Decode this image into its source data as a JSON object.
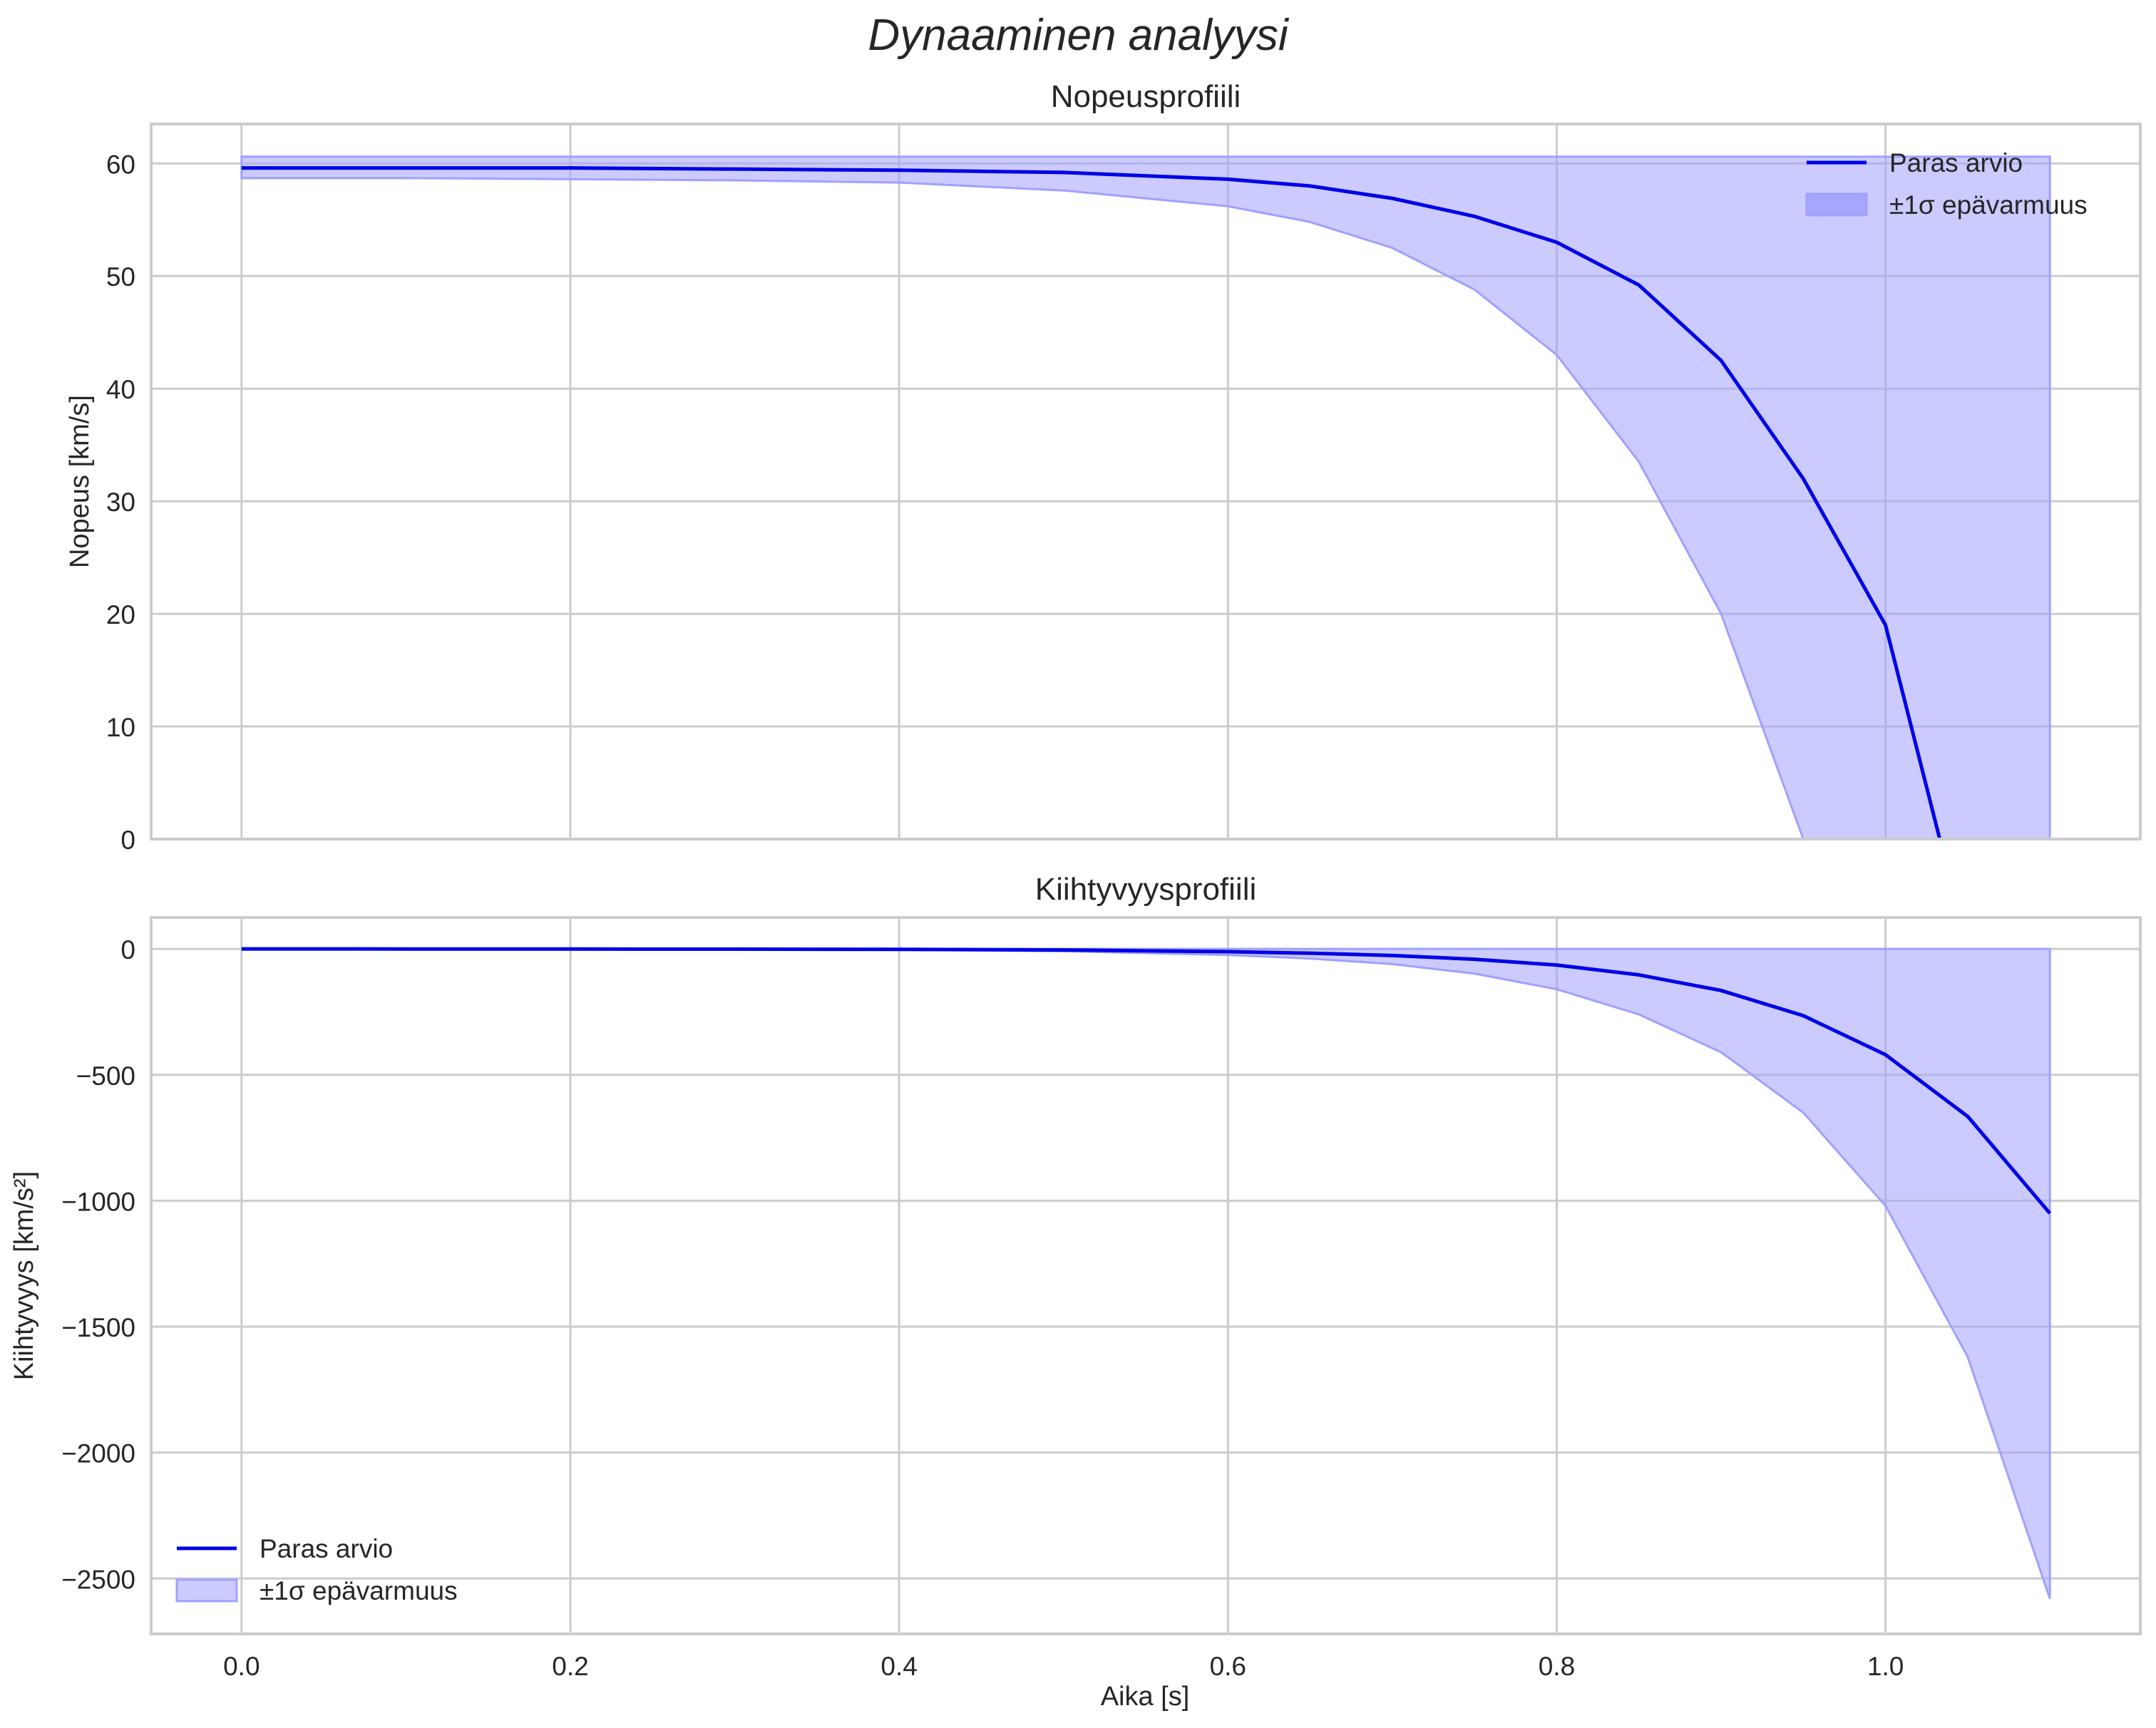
{
  "figure": {
    "suptitle": "Dynaaminen analyysi",
    "xlabel": "Aika [s]"
  },
  "colors": {
    "line": "#0000e6",
    "band": "#a0a0ff",
    "grid": "#cccccc",
    "text": "#262626"
  },
  "chart_data": [
    {
      "type": "line",
      "title": "Nopeusprofiili",
      "xlabel": "",
      "ylabel": "Nopeus [km/s]",
      "xlim": [
        -0.055,
        1.155
      ],
      "ylim": [
        0,
        63.5
      ],
      "xticks": [
        0.0,
        0.2,
        0.4,
        0.6,
        0.8,
        1.0
      ],
      "yticks": [
        0,
        10,
        20,
        30,
        40,
        50,
        60
      ],
      "ytick_labels": [
        "0",
        "10",
        "20",
        "30",
        "40",
        "50",
        "60"
      ],
      "grid": true,
      "legend_position": "upper right",
      "x": [
        0.0,
        0.1,
        0.2,
        0.3,
        0.4,
        0.5,
        0.6,
        0.65,
        0.7,
        0.75,
        0.8,
        0.85,
        0.9,
        0.95,
        1.0,
        1.033
      ],
      "series": [
        {
          "name": "Paras arvio",
          "values": [
            59.6,
            59.6,
            59.6,
            59.5,
            59.4,
            59.2,
            58.6,
            58.0,
            56.9,
            55.3,
            53.0,
            49.2,
            42.5,
            32.0,
            19.0,
            0.0
          ]
        },
        {
          "name": "±1σ epävarmuus (lower)",
          "values": [
            58.7,
            58.7,
            58.6,
            58.5,
            58.3,
            57.6,
            56.2,
            54.8,
            52.5,
            48.8,
            43.0,
            33.5,
            20.0,
            0.0,
            0.0,
            0.0
          ]
        },
        {
          "name": "±1σ epävarmuus (upper)",
          "values": [
            60.6,
            60.6,
            60.6,
            60.6,
            60.6,
            60.6,
            60.6,
            60.6,
            60.6,
            60.6,
            60.6,
            60.6,
            60.6,
            60.6,
            60.6,
            60.6
          ]
        }
      ],
      "band_x_end": 1.1,
      "legend": [
        "Paras arvio",
        "±1σ epävarmuus"
      ]
    },
    {
      "type": "line",
      "title": "Kiihtyvyysprofiili",
      "xlabel": "Aika [s]",
      "ylabel": "Kiihtyvyys [km/s²]",
      "xlim": [
        -0.055,
        1.155
      ],
      "ylim": [
        -2720,
        125
      ],
      "xticks": [
        0.0,
        0.2,
        0.4,
        0.6,
        0.8,
        1.0
      ],
      "xtick_labels": [
        "0.0",
        "0.2",
        "0.4",
        "0.6",
        "0.8",
        "1.0"
      ],
      "yticks": [
        0,
        -500,
        -1000,
        -1500,
        -2000,
        -2500
      ],
      "ytick_labels": [
        "0",
        "−500",
        "−1000",
        "−1500",
        "−2000",
        "−2500"
      ],
      "grid": true,
      "legend_position": "lower left",
      "x": [
        0.0,
        0.1,
        0.2,
        0.3,
        0.4,
        0.5,
        0.6,
        0.65,
        0.7,
        0.75,
        0.8,
        0.85,
        0.9,
        0.95,
        1.0,
        1.05,
        1.1
      ],
      "series": [
        {
          "name": "Paras arvio",
          "values": [
            0,
            -0.1,
            -0.3,
            -0.7,
            -1.7,
            -4,
            -11,
            -17,
            -26,
            -41,
            -64,
            -103,
            -165,
            -265,
            -420,
            -665,
            -1050
          ]
        },
        {
          "name": "±1σ epävarmuus (lower)",
          "values": [
            0,
            -0.2,
            -0.6,
            -1.5,
            -3.5,
            -9,
            -24,
            -38,
            -60,
            -98,
            -160,
            -260,
            -410,
            -650,
            -1020,
            -1620,
            -2580
          ]
        },
        {
          "name": "±1σ epävarmuus (upper)",
          "values": [
            0,
            0,
            0,
            0,
            0,
            0,
            0,
            0,
            0,
            0,
            0,
            0,
            0,
            0,
            0,
            0,
            0
          ]
        }
      ],
      "legend": [
        "Paras arvio",
        "±1σ epävarmuus"
      ]
    }
  ]
}
